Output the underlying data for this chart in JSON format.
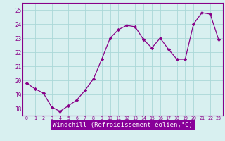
{
  "x": [
    0,
    1,
    2,
    3,
    4,
    5,
    6,
    7,
    8,
    9,
    10,
    11,
    12,
    13,
    14,
    15,
    16,
    17,
    18,
    19,
    20,
    21,
    22,
    23
  ],
  "y": [
    19.8,
    19.4,
    19.1,
    18.1,
    17.8,
    18.2,
    18.6,
    19.3,
    20.1,
    21.5,
    23.0,
    23.6,
    23.9,
    23.8,
    22.9,
    22.3,
    23.0,
    22.2,
    21.5,
    21.5,
    24.0,
    24.8,
    24.7,
    22.9
  ],
  "line_color": "#880088",
  "marker": "D",
  "markersize": 2.2,
  "linewidth": 0.9,
  "xlabel": "Windchill (Refroidissement éolien,°C)",
  "xlabel_fontsize": 6.5,
  "ylabel_ticks": [
    18,
    19,
    20,
    21,
    22,
    23,
    24,
    25
  ],
  "xtick_labels": [
    "0",
    "1",
    "2",
    "3",
    "4",
    "5",
    "6",
    "7",
    "8",
    "9",
    "10",
    "11",
    "12",
    "13",
    "14",
    "15",
    "16",
    "17",
    "18",
    "19",
    "20",
    "21",
    "22",
    "23"
  ],
  "ylim": [
    17.5,
    25.5
  ],
  "xlim": [
    -0.5,
    23.5
  ],
  "bg_color": "#d8f0f0",
  "grid_color": "#aad8d8",
  "tick_color": "#880088",
  "label_color": "#880088",
  "spine_color": "#880088",
  "xlabel_bg": "#8800aa"
}
